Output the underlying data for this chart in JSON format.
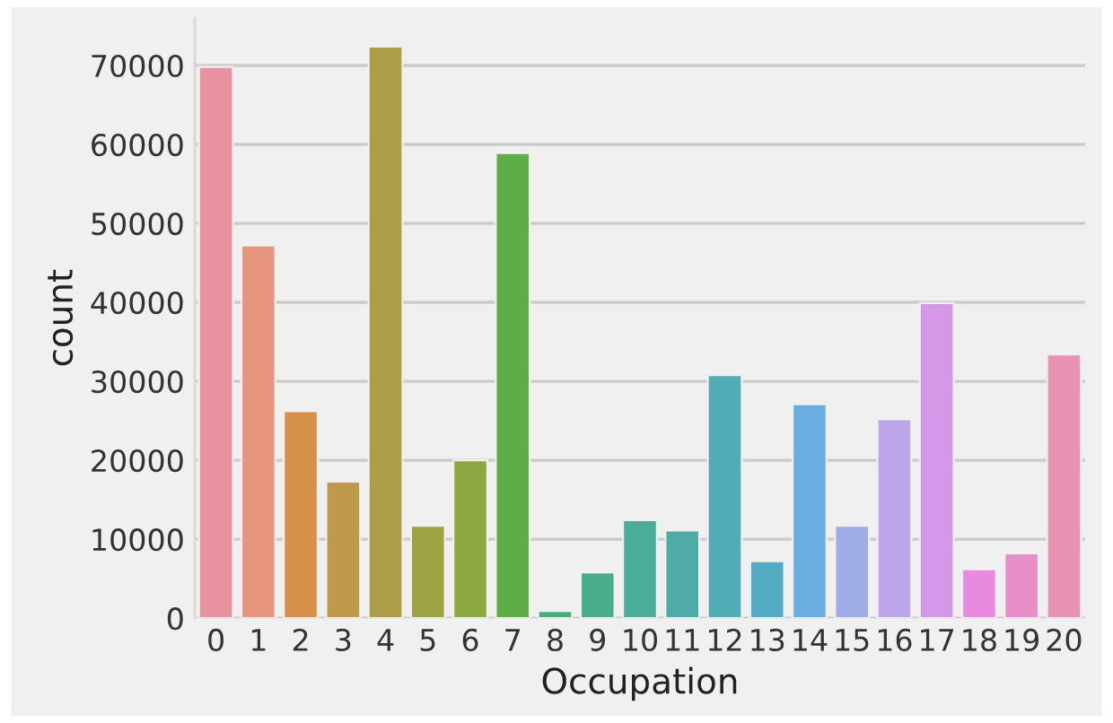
{
  "chart_data": {
    "type": "bar",
    "xlabel": "Occupation",
    "ylabel": "count",
    "categories": [
      "0",
      "1",
      "2",
      "3",
      "4",
      "5",
      "6",
      "7",
      "8",
      "9",
      "10",
      "11",
      "12",
      "13",
      "14",
      "15",
      "16",
      "17",
      "18",
      "19",
      "20"
    ],
    "values": [
      69800,
      47200,
      26200,
      17300,
      72400,
      11700,
      20000,
      58900,
      900,
      5800,
      12400,
      11100,
      30800,
      7200,
      27100,
      11700,
      25200,
      39900,
      6200,
      8200,
      33400
    ],
    "colors": [
      "#e8939f",
      "#e6957f",
      "#d5904a",
      "#bf9a4d",
      "#ae9d47",
      "#9ea443",
      "#8ba843",
      "#5eae48",
      "#4aae7a",
      "#4aae8c",
      "#4cac9b",
      "#4eaba6",
      "#50adb6",
      "#53abc6",
      "#6aade0",
      "#a0ace8",
      "#bca5e8",
      "#d598e6",
      "#e88ae0",
      "#e88ec8",
      "#e893b3"
    ],
    "ylim": [
      0,
      76000
    ],
    "yticks": [
      0,
      10000,
      20000,
      30000,
      40000,
      50000,
      60000,
      70000
    ],
    "grid": "y"
  }
}
